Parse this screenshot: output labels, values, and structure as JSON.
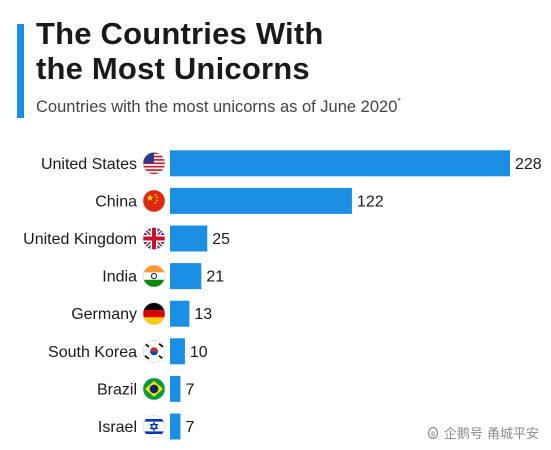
{
  "header": {
    "title_line1": "The Countries With",
    "title_line2": "the Most Unicorns",
    "subtitle": "Countries with the most unicorns as of June 2020",
    "subtitle_mark": "*"
  },
  "watermark": "企鹅号 甬城平安",
  "colors": {
    "bar": "#1a8fe3",
    "accent": "#1a8fe3"
  },
  "chart_data": {
    "type": "bar",
    "orientation": "horizontal",
    "title": "The Countries With the Most Unicorns",
    "subtitle": "Countries with the most unicorns as of June 2020*",
    "categories": [
      "United States",
      "China",
      "United Kingdom",
      "India",
      "Germany",
      "South Korea",
      "Brazil",
      "Israel"
    ],
    "flags": [
      "us-flag-icon",
      "china-flag-icon",
      "uk-flag-icon",
      "india-flag-icon",
      "germany-flag-icon",
      "south-korea-flag-icon",
      "brazil-flag-icon",
      "israel-flag-icon"
    ],
    "values": [
      228,
      122,
      25,
      21,
      13,
      10,
      7,
      7
    ],
    "xlim": [
      0,
      228
    ],
    "data_labels": true,
    "grid": false,
    "legend": "none"
  }
}
